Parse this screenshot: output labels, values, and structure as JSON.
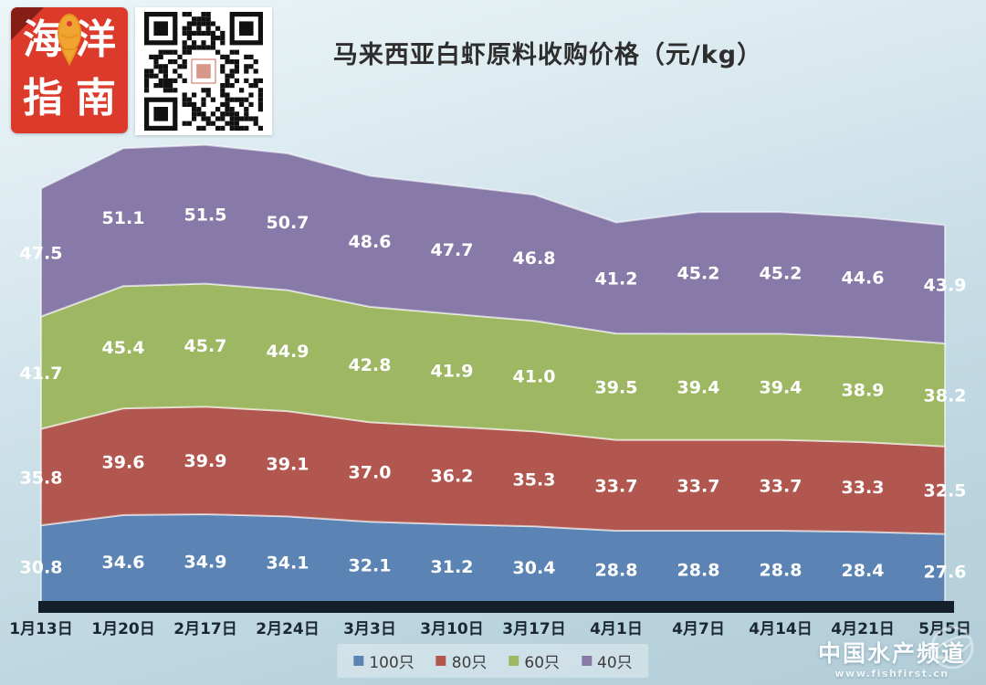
{
  "header": {
    "title": "马来西亚白虾原料收购价格（元/kg）"
  },
  "branding": {
    "logo_name": "海洋指南",
    "logo_chars": [
      "海",
      "洋",
      "指",
      "南"
    ],
    "logo_bg_color": "#dc3a2b",
    "fish_color": "#f0a432"
  },
  "icons": {
    "qr": "qr-code",
    "fish": "fish-icon",
    "globe": "globe-icon"
  },
  "chart_data": {
    "type": "area",
    "stacked": true,
    "title": "马来西亚白虾原料收购价格（元/kg）",
    "categories": [
      "1月13日",
      "1月20日",
      "2月17日",
      "2月24日",
      "3月3日",
      "3月10日",
      "3月17日",
      "4月1日",
      "4月7日",
      "4月14日",
      "4月21日",
      "5月5日"
    ],
    "series": [
      {
        "name": "100只",
        "color": "#5b84b5",
        "values": [
          30.8,
          34.6,
          34.9,
          34.1,
          32.1,
          31.2,
          30.4,
          28.8,
          28.8,
          28.8,
          28.4,
          27.6
        ]
      },
      {
        "name": "80只",
        "color": "#b2574f",
        "values": [
          35.8,
          39.6,
          39.9,
          39.1,
          37.0,
          36.2,
          35.3,
          33.7,
          33.7,
          33.7,
          33.3,
          32.5
        ]
      },
      {
        "name": "60只",
        "color": "#9eb762",
        "values": [
          41.7,
          45.4,
          45.7,
          44.9,
          42.8,
          41.9,
          41.0,
          39.5,
          39.4,
          39.4,
          38.9,
          38.2
        ]
      },
      {
        "name": "40只",
        "color": "#877aa9",
        "values": [
          47.5,
          51.1,
          51.5,
          50.7,
          48.6,
          47.7,
          46.8,
          41.2,
          45.2,
          45.2,
          44.6,
          43.9
        ]
      }
    ],
    "data_labels": true,
    "y_axis_visible": false,
    "legend_position": "bottom",
    "ylim": [
      0,
      176
    ]
  },
  "watermark": {
    "name": "中国水产频道",
    "url": "www.fishfirst.cn"
  },
  "colors": {
    "axis_bar": "#151f29",
    "axis_label": "#1b2733",
    "data_label": "#ffffff"
  }
}
